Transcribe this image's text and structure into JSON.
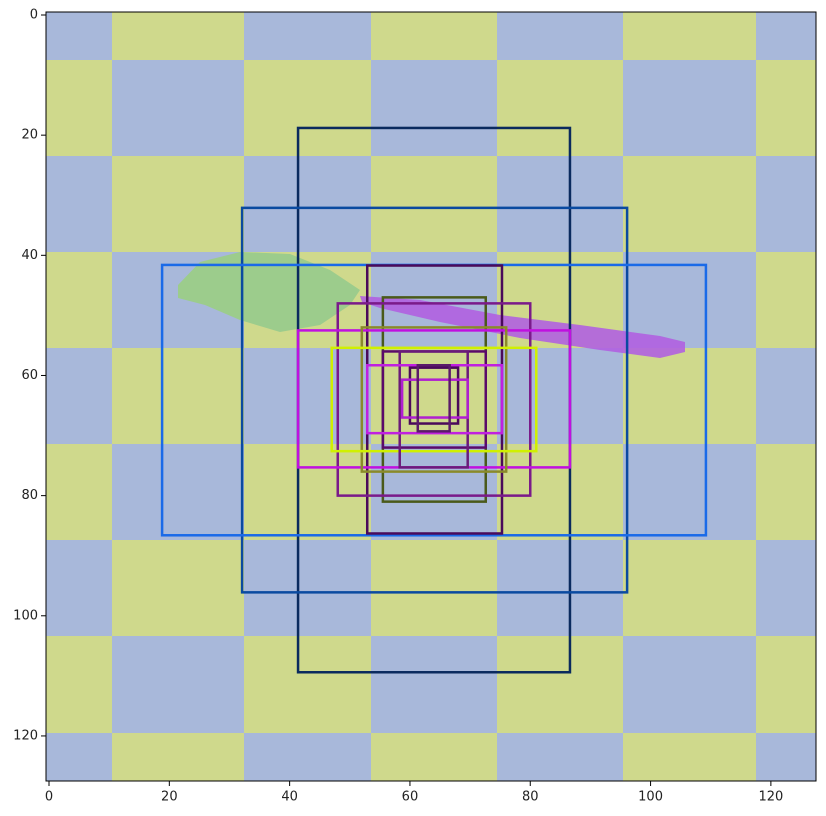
{
  "chart_data": {
    "type": "image",
    "xlim": [
      -0.5,
      127.5
    ],
    "ylim": [
      127.5,
      -0.5
    ],
    "xticks": [
      0,
      20,
      40,
      60,
      80,
      100,
      120
    ],
    "yticks": [
      0,
      20,
      40,
      60,
      80,
      100,
      120
    ],
    "boxes": [
      {
        "x0": 41.4,
        "y0": 18.8,
        "x1": 86.6,
        "y1": 109.4,
        "color": "#0a2a5e"
      },
      {
        "x0": 32.1,
        "y0": 32.1,
        "x1": 96.1,
        "y1": 96.1,
        "color": "#0a4aa0"
      },
      {
        "x0": 18.8,
        "y0": 41.6,
        "x1": 109.2,
        "y1": 86.6,
        "color": "#1a6ae8"
      },
      {
        "x0": 52.9,
        "y0": 41.7,
        "x1": 75.3,
        "y1": 86.3,
        "color": "#4a0a5a"
      },
      {
        "x0": 55.5,
        "y0": 47,
        "x1": 72.6,
        "y1": 81,
        "color": "#4a5a1a"
      },
      {
        "x0": 48,
        "y0": 48,
        "x1": 80,
        "y1": 80,
        "color": "#7a1a8a"
      },
      {
        "x0": 41.4,
        "y0": 52.5,
        "x1": 86.6,
        "y1": 75.3,
        "color": "#c010e0"
      },
      {
        "x0": 52,
        "y0": 52,
        "x1": 76,
        "y1": 76,
        "color": "#8a8a2a"
      },
      {
        "x0": 47,
        "y0": 55.4,
        "x1": 81,
        "y1": 72.6,
        "color": "#d0f000"
      },
      {
        "x0": 55.5,
        "y0": 56,
        "x1": 72.6,
        "y1": 72,
        "color": "#5a0a6a"
      },
      {
        "x0": 58.3,
        "y0": 56,
        "x1": 69.6,
        "y1": 75.3,
        "color": "#6a1a7a"
      },
      {
        "x0": 52.9,
        "y0": 58.3,
        "x1": 75.3,
        "y1": 69.6,
        "color": "#c020e0"
      },
      {
        "x0": 60,
        "y0": 58.7,
        "x1": 68,
        "y1": 68,
        "color": "#4a0a5a"
      },
      {
        "x0": 58.7,
        "y0": 60.7,
        "x1": 69.6,
        "y1": 67,
        "color": "#b020d0"
      },
      {
        "x0": 61.3,
        "y0": 58.3,
        "x1": 66.6,
        "y1": 69.3,
        "color": "#5a1a6a"
      }
    ]
  }
}
